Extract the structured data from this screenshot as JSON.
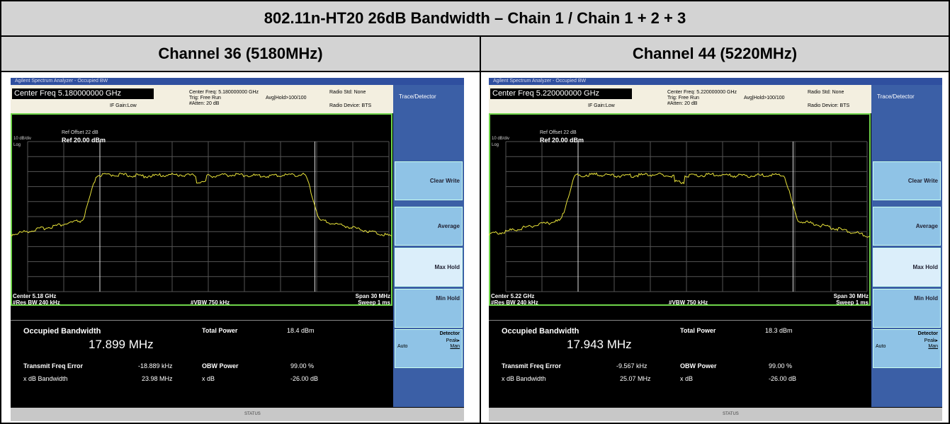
{
  "title": "802.11n-HT20 26dB Bandwidth – Chain 1 / Chain 1 + 2 + 3",
  "panels": [
    {
      "heading": "Channel 36 (5180MHz)",
      "screen": {
        "window_title": "Agilent Spectrum Analyzer - Occupied BW",
        "center_freq": "Center Freq 5.180000000 GHz",
        "settings": [
          "Center Freq: 5.180000000 GHz",
          "Trig: Free Run",
          "#Atten: 20 dB"
        ],
        "avg_hold": "Avg|Hold>100/100",
        "radio_std": "Radio Std: None",
        "radio_device": "Radio Device: BTS",
        "if_gain": "IF Gain:Low",
        "ref_offset": "Ref Offset 22 dB",
        "ref_level": "Ref 20.00 dBm",
        "scale": "10 dB/div",
        "log": "Log",
        "center": "Center 5.18 GHz",
        "res_bw": "#Res BW 240 kHz",
        "vbw": "#VBW 750 kHz",
        "span": "Span 30 MHz",
        "sweep": "Sweep 1 ms",
        "menu_title": "Trace/Detector",
        "menu": [
          "Clear Write",
          "Average",
          "Max Hold",
          "Min Hold"
        ],
        "detector": "Detector",
        "detector_mode": "Peak▸",
        "auto": "Auto",
        "man": "Man",
        "occupied_bw_label": "Occupied Bandwidth",
        "occupied_bw": "17.899 MHz",
        "total_power_label": "Total Power",
        "total_power": "18.4 dBm",
        "freq_error_label": "Transmit Freq Error",
        "freq_error": "-18.889 kHz",
        "obw_power_label": "OBW Power",
        "obw_power": "99.00 %",
        "xdb_bw_label": "x dB Bandwidth",
        "xdb_bw": "23.98 MHz",
        "xdb_label": "x dB",
        "xdb": "-26.00 dB",
        "status": "STATUS"
      }
    },
    {
      "heading": "Channel 44 (5220MHz)",
      "screen": {
        "window_title": "Agilent Spectrum Analyzer - Occupied BW",
        "center_freq": "Center Freq 5.220000000 GHz",
        "settings": [
          "Center Freq: 5.220000000 GHz",
          "Trig: Free Run",
          "#Atten: 20 dB"
        ],
        "avg_hold": "Avg|Hold>100/100",
        "radio_std": "Radio Std: None",
        "radio_device": "Radio Device: BTS",
        "if_gain": "IF Gain:Low",
        "ref_offset": "Ref Offset 22 dB",
        "ref_level": "Ref 20.00 dBm",
        "scale": "10 dB/div",
        "log": "Log",
        "center": "Center 5.22 GHz",
        "res_bw": "#Res BW 240 kHz",
        "vbw": "#VBW 750 kHz",
        "span": "Span 30 MHz",
        "sweep": "Sweep 1 ms",
        "menu_title": "Trace/Detector",
        "menu": [
          "Clear Write",
          "Average",
          "Max Hold",
          "Min Hold"
        ],
        "detector": "Detector",
        "detector_mode": "Peak▸",
        "auto": "Auto",
        "man": "Man",
        "occupied_bw_label": "Occupied Bandwidth",
        "occupied_bw": "17.943 MHz",
        "total_power_label": "Total Power",
        "total_power": "18.3 dBm",
        "freq_error_label": "Transmit Freq Error",
        "freq_error": "-9.567 kHz",
        "obw_power_label": "OBW Power",
        "obw_power": "99.00 %",
        "xdb_bw_label": "x dB Bandwidth",
        "xdb_bw": "25.07 MHz",
        "xdb_label": "x dB",
        "xdb": "-26.00 dB",
        "status": "STATUS"
      }
    }
  ]
}
